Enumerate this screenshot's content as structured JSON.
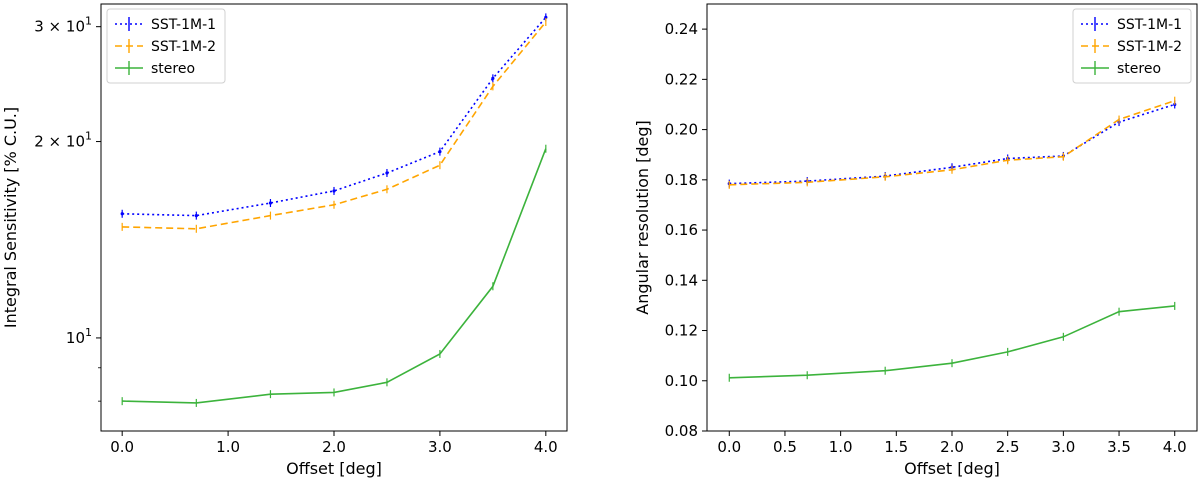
{
  "chart_data": [
    {
      "type": "line",
      "yscale": "log",
      "xlabel": "Offset [deg]",
      "ylabel": "Integral Sensitivity [% C.U.]",
      "xlim": [
        -0.2,
        4.2
      ],
      "ylim": [
        7.2,
        32.5
      ],
      "xticks": [
        0,
        1,
        2,
        3,
        4
      ],
      "xtick_labels": [
        "0.0",
        "1.0",
        "2.0",
        "3.0",
        "4.0"
      ],
      "yticks": [
        10,
        20,
        30
      ],
      "ytick_labels": [
        {
          "base": "10",
          "exp": "1",
          "mult": ""
        },
        {
          "base": "10",
          "exp": "1",
          "mult": "2 × "
        },
        {
          "base": "10",
          "exp": "1",
          "mult": "3 × "
        }
      ],
      "legend": "top-left",
      "series": [
        {
          "name": "SST-1M-1",
          "color": "#0000ff",
          "dash": "2,3",
          "marker": "dot",
          "x": [
            0,
            0.7,
            1.4,
            2.0,
            2.5,
            3.0,
            3.5,
            4.0
          ],
          "y": [
            15.5,
            15.4,
            16.1,
            16.8,
            17.9,
            19.3,
            25.0,
            31.0
          ]
        },
        {
          "name": "SST-1M-2",
          "color": "#ffa500",
          "dash": "7,4",
          "marker": "",
          "x": [
            0,
            0.7,
            1.4,
            2.0,
            2.5,
            3.0,
            3.5,
            4.0
          ],
          "y": [
            14.8,
            14.7,
            15.4,
            16.0,
            16.9,
            18.4,
            24.3,
            30.5
          ]
        },
        {
          "name": "stereo",
          "color": "#3cb33c",
          "dash": "",
          "marker": "",
          "x": [
            0,
            0.7,
            1.4,
            2.0,
            2.5,
            3.0,
            3.5,
            4.0
          ],
          "y": [
            8.0,
            7.95,
            8.2,
            8.25,
            8.55,
            9.45,
            12.0,
            19.5
          ]
        }
      ]
    },
    {
      "type": "line",
      "yscale": "linear",
      "xlabel": "Offset [deg]",
      "ylabel": "Angular resolution [deg]",
      "xlim": [
        -0.2,
        4.2
      ],
      "ylim": [
        0.08,
        0.25
      ],
      "xticks": [
        0,
        0.5,
        1.0,
        1.5,
        2.0,
        2.5,
        3.0,
        3.5,
        4.0
      ],
      "xtick_labels": [
        "0.0",
        "0.5",
        "1.0",
        "1.5",
        "2.0",
        "2.5",
        "3.0",
        "3.5",
        "4.0"
      ],
      "yticks": [
        0.08,
        0.1,
        0.12,
        0.14,
        0.16,
        0.18,
        0.2,
        0.22,
        0.24
      ],
      "ytick_labels": [
        "0.08",
        "0.10",
        "0.12",
        "0.14",
        "0.16",
        "0.18",
        "0.20",
        "0.22",
        "0.24"
      ],
      "legend": "top-right",
      "series": [
        {
          "name": "SST-1M-1",
          "color": "#0000ff",
          "dash": "2,3",
          "marker": "dot",
          "x": [
            0,
            0.7,
            1.4,
            2.0,
            2.5,
            3.0,
            3.5,
            4.0
          ],
          "y": [
            0.1785,
            0.1795,
            0.1815,
            0.185,
            0.1885,
            0.1895,
            0.203,
            0.21
          ]
        },
        {
          "name": "SST-1M-2",
          "color": "#ffa500",
          "dash": "7,4",
          "marker": "",
          "x": [
            0,
            0.7,
            1.4,
            2.0,
            2.5,
            3.0,
            3.5,
            4.0
          ],
          "y": [
            0.178,
            0.179,
            0.1812,
            0.184,
            0.1878,
            0.1892,
            0.204,
            0.2115
          ]
        },
        {
          "name": "stereo",
          "color": "#3cb33c",
          "dash": "",
          "marker": "",
          "x": [
            0,
            0.7,
            1.4,
            2.0,
            2.5,
            3.0,
            3.5,
            4.0
          ],
          "y": [
            0.1012,
            0.1022,
            0.104,
            0.107,
            0.1115,
            0.1175,
            0.1275,
            0.1298
          ]
        }
      ]
    }
  ]
}
